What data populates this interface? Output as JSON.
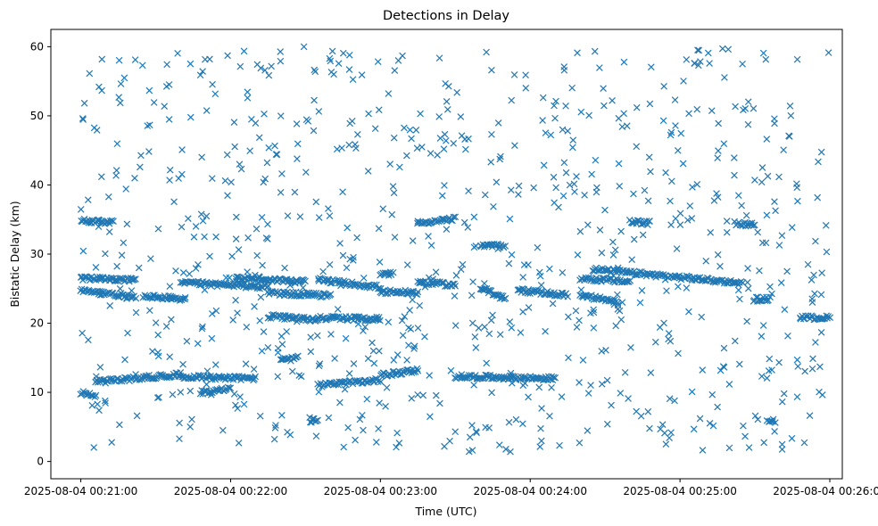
{
  "chart_data": {
    "type": "scatter",
    "title": "Detections in Delay",
    "xlabel": "Time (UTC)",
    "ylabel": "Bistatic Delay (km)",
    "marker": "x",
    "color": "#1f77b4",
    "grid": false,
    "legend": "none",
    "xlim": [
      "2025-08-04 00:20:48",
      "2025-08-04 00:26:05"
    ],
    "ylim": [
      -2.5,
      62.5
    ],
    "xticks": [
      "2025-08-04 00:21:00",
      "2025-08-04 00:22:00",
      "2025-08-04 00:23:00",
      "2025-08-04 00:24:00",
      "2025-08-04 00:25:00",
      "2025-08-04 00:26:00"
    ],
    "yticks": [
      "0",
      "10",
      "20",
      "30",
      "40",
      "50",
      "60"
    ],
    "tracks": [
      {
        "t0": "2025-08-04 00:21:00",
        "t1": "2025-08-04 00:21:13",
        "y0": 34.8,
        "y1": 34.6
      },
      {
        "t0": "2025-08-04 00:21:00",
        "t1": "2025-08-04 00:21:22",
        "y0": 26.5,
        "y1": 26.2
      },
      {
        "t0": "2025-08-04 00:21:00",
        "t1": "2025-08-04 00:21:22",
        "y0": 24.7,
        "y1": 23.8
      },
      {
        "t0": "2025-08-04 00:21:00",
        "t1": "2025-08-04 00:21:06",
        "y0": 10.0,
        "y1": 9.5
      },
      {
        "t0": "2025-08-04 00:21:06",
        "t1": "2025-08-04 00:21:40",
        "y0": 11.5,
        "y1": 12.6
      },
      {
        "t0": "2025-08-04 00:21:40",
        "t1": "2025-08-04 00:22:10",
        "y0": 12.3,
        "y1": 12.0
      },
      {
        "t0": "2025-08-04 00:21:25",
        "t1": "2025-08-04 00:21:42",
        "y0": 23.9,
        "y1": 23.5
      },
      {
        "t0": "2025-08-04 00:21:40",
        "t1": "2025-08-04 00:22:15",
        "y0": 25.9,
        "y1": 25.2
      },
      {
        "t0": "2025-08-04 00:22:02",
        "t1": "2025-08-04 00:22:30",
        "y0": 26.6,
        "y1": 26.0
      },
      {
        "t0": "2025-08-04 00:22:15",
        "t1": "2025-08-04 00:22:40",
        "y0": 24.4,
        "y1": 24.0
      },
      {
        "t0": "2025-08-04 00:21:48",
        "t1": "2025-08-04 00:22:00",
        "y0": 10.0,
        "y1": 10.5
      },
      {
        "t0": "2025-08-04 00:22:15",
        "t1": "2025-08-04 00:22:35",
        "y0": 21.0,
        "y1": 20.5
      },
      {
        "t0": "2025-08-04 00:22:35",
        "t1": "2025-08-04 00:23:00",
        "y0": 20.8,
        "y1": 20.6
      },
      {
        "t0": "2025-08-04 00:22:20",
        "t1": "2025-08-04 00:22:27",
        "y0": 14.6,
        "y1": 15.0
      },
      {
        "t0": "2025-08-04 00:22:32",
        "t1": "2025-08-04 00:22:35",
        "y0": 5.9,
        "y1": 5.9
      },
      {
        "t0": "2025-08-04 00:22:35",
        "t1": "2025-08-04 00:23:00",
        "y0": 26.3,
        "y1": 25.2
      },
      {
        "t0": "2025-08-04 00:22:35",
        "t1": "2025-08-04 00:23:00",
        "y0": 11.0,
        "y1": 11.8
      },
      {
        "t0": "2025-08-04 00:23:00",
        "t1": "2025-08-04 00:23:15",
        "y0": 24.6,
        "y1": 24.4
      },
      {
        "t0": "2025-08-04 00:23:15",
        "t1": "2025-08-04 00:23:30",
        "y0": 26.0,
        "y1": 25.5
      },
      {
        "t0": "2025-08-04 00:23:15",
        "t1": "2025-08-04 00:23:30",
        "y0": 34.5,
        "y1": 35.1
      },
      {
        "t0": "2025-08-04 00:23:00",
        "t1": "2025-08-04 00:23:05",
        "y0": 27.1,
        "y1": 27.1
      },
      {
        "t0": "2025-08-04 00:23:00",
        "t1": "2025-08-04 00:23:15",
        "y0": 12.5,
        "y1": 13.2
      },
      {
        "t0": "2025-08-04 00:23:40",
        "t1": "2025-08-04 00:23:50",
        "y0": 25.2,
        "y1": 23.5
      },
      {
        "t0": "2025-08-04 00:23:40",
        "t1": "2025-08-04 00:23:50",
        "y0": 31.2,
        "y1": 31.2
      },
      {
        "t0": "2025-08-04 00:23:30",
        "t1": "2025-08-04 00:24:10",
        "y0": 12.3,
        "y1": 12.0
      },
      {
        "t0": "2025-08-04 00:23:55",
        "t1": "2025-08-04 00:24:15",
        "y0": 24.8,
        "y1": 24.0
      },
      {
        "t0": "2025-08-04 00:24:20",
        "t1": "2025-08-04 00:24:40",
        "y0": 26.5,
        "y1": 26.0
      },
      {
        "t0": "2025-08-04 00:24:20",
        "t1": "2025-08-04 00:24:35",
        "y0": 24.0,
        "y1": 23.2
      },
      {
        "t0": "2025-08-04 00:24:25",
        "t1": "2025-08-04 00:25:25",
        "y0": 27.8,
        "y1": 25.8
      },
      {
        "t0": "2025-08-04 00:24:40",
        "t1": "2025-08-04 00:24:48",
        "y0": 34.7,
        "y1": 34.5
      },
      {
        "t0": "2025-08-04 00:25:30",
        "t1": "2025-08-04 00:25:36",
        "y0": 23.5,
        "y1": 23.5
      },
      {
        "t0": "2025-08-04 00:25:35",
        "t1": "2025-08-04 00:25:38",
        "y0": 5.9,
        "y1": 5.9
      },
      {
        "t0": "2025-08-04 00:25:48",
        "t1": "2025-08-04 00:26:00",
        "y0": 20.8,
        "y1": 20.8
      },
      {
        "t0": "2025-08-04 00:25:22",
        "t1": "2025-08-04 00:25:30",
        "y0": 34.5,
        "y1": 34.2
      }
    ],
    "random_count": 820
  }
}
